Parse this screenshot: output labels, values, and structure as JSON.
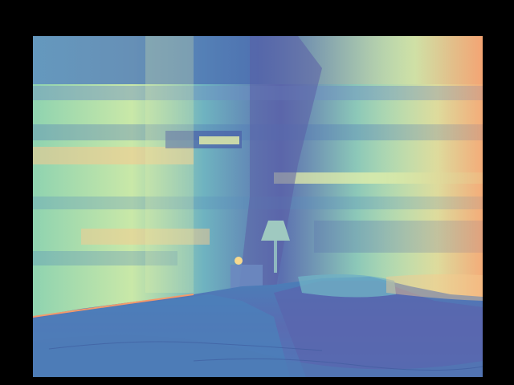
{
  "image": {
    "kind": "depth-map visualization",
    "palette": "spectral",
    "colors": {
      "background_border": "#000000",
      "deep_purple": "#5b5ea6",
      "blue": "#4b7fb8",
      "teal": "#4aa3b5",
      "mint": "#8fd3b0",
      "pale_yellow": "#e9f2a8",
      "peach": "#f7c98e",
      "orange": "#f39a6b"
    },
    "regions": [
      "wall-band",
      "window-frame",
      "lamp",
      "bed",
      "small-object"
    ]
  }
}
